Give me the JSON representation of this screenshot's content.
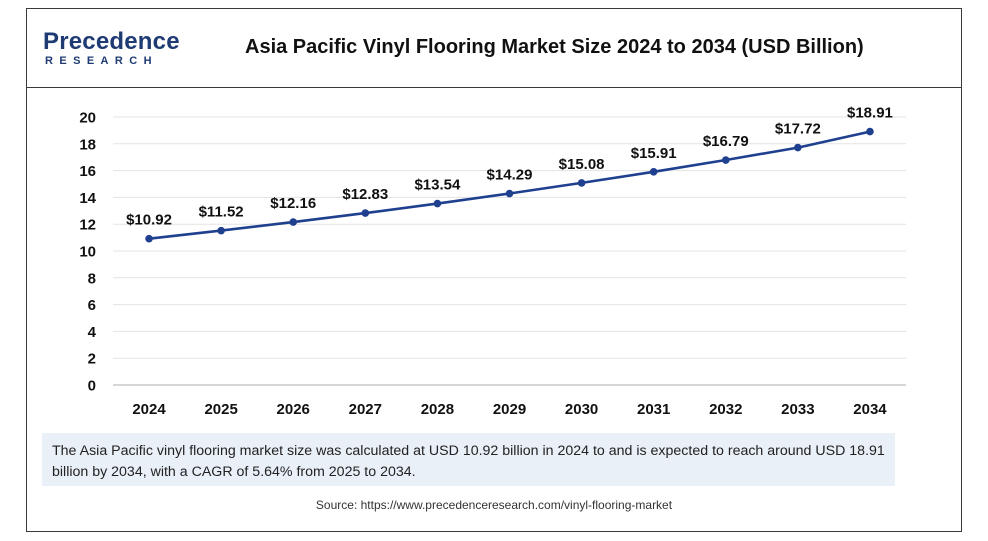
{
  "brand": {
    "name_main": "Precedence",
    "name_sub": "RESEARCH"
  },
  "title": "Asia Pacific Vinyl Flooring Market Size 2024 to 2034 (USD Billion)",
  "description": "The Asia Pacific vinyl flooring market size was calculated at USD 10.92 billion in 2024 to and is expected to reach around USD 18.91 billion by 2034, with a CAGR of 5.64% from 2025 to 2034.",
  "source": "Source: https://www.precedenceresearch.com/vinyl-flooring-market",
  "colors": {
    "line": "#1f3f8f",
    "brand": "#1f3b73",
    "desc_bg": "#e9f0f8"
  },
  "chart_data": {
    "type": "line",
    "title": "Asia Pacific Vinyl Flooring Market Size 2024 to 2034 (USD Billion)",
    "categories": [
      "2024",
      "2025",
      "2026",
      "2027",
      "2028",
      "2029",
      "2030",
      "2031",
      "2032",
      "2033",
      "2034"
    ],
    "series": [
      {
        "values": [
          10.92,
          11.52,
          12.16,
          12.83,
          13.54,
          14.29,
          15.08,
          15.91,
          16.79,
          17.72,
          18.91
        ]
      }
    ],
    "data_labels": [
      "$10.92",
      "$11.52",
      "$12.16",
      "$12.83",
      "$13.54",
      "$14.29",
      "$15.08",
      "$15.91",
      "$16.79",
      "$17.72",
      "$18.91"
    ],
    "y_ticks": [
      0,
      2,
      4,
      6,
      8,
      10,
      12,
      14,
      16,
      18,
      20
    ],
    "ylim": [
      0,
      20
    ],
    "grid": true,
    "legend": "none"
  }
}
